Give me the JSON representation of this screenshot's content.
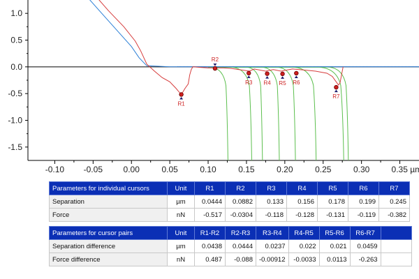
{
  "chart_data": {
    "type": "line",
    "title": "",
    "xlabel": "",
    "ylabel": "",
    "x_unit": "µm",
    "xlim": [
      -0.135,
      0.375
    ],
    "ylim": [
      -1.75,
      1.25
    ],
    "x_ticks": [
      -0.1,
      -0.05,
      0.0,
      0.05,
      0.1,
      0.15,
      0.2,
      0.25,
      0.3,
      0.35
    ],
    "x_tick_labels": [
      "-0.10",
      "-0.05",
      "0.00",
      "0.05",
      "0.10",
      "0.15",
      "0.20",
      "0.25",
      "0.30",
      "0.35 µm"
    ],
    "y_ticks": [
      1.0,
      0.5,
      0.0,
      -0.5,
      -1.0,
      -1.5
    ],
    "y_tick_labels": [
      "1.0",
      "0.5",
      "0.0",
      "-0.5",
      "-1.0",
      "-1.5"
    ],
    "grid": false,
    "colors": {
      "approach": "#2b7fd6",
      "retract": "#d63c3c",
      "steps": "#5cbf4e",
      "baseline": "#1a3faa",
      "zero_line": "#000000",
      "cursor": "#cc1f1f"
    },
    "series": [
      {
        "color": "#2b7fd6",
        "x": [
          -0.056,
          -0.04,
          -0.02,
          0.0,
          0.01,
          0.02,
          0.05,
          0.1,
          0.2,
          0.3,
          0.375
        ],
        "y": [
          1.28,
          1.02,
          0.7,
          0.38,
          0.17,
          0.02,
          0.0,
          0.0,
          0.0,
          0.0,
          0.0
        ]
      },
      {
        "color": "#d63c3c",
        "x": [
          -0.044,
          -0.03,
          -0.01,
          0.005,
          0.012,
          0.02,
          0.03,
          0.04,
          0.05,
          0.058,
          0.065,
          0.07,
          0.074,
          0.076,
          0.078,
          0.08,
          0.09,
          0.1,
          0.11,
          0.12,
          0.13,
          0.154,
          0.16,
          0.175,
          0.185,
          0.195,
          0.21,
          0.225,
          0.24,
          0.255,
          0.262,
          0.266,
          0.27,
          0.272,
          0.276
        ],
        "y": [
          1.28,
          1.05,
          0.75,
          0.48,
          0.3,
          0.05,
          -0.08,
          -0.2,
          -0.28,
          -0.4,
          -0.52,
          -0.4,
          -0.32,
          -0.15,
          -0.05,
          0.0,
          -0.01,
          -0.02,
          -0.02,
          -0.02,
          -0.03,
          -0.08,
          -0.04,
          -0.08,
          -0.05,
          -0.08,
          -0.04,
          -0.06,
          -0.08,
          -0.12,
          -0.18,
          -0.26,
          -0.34,
          -0.3,
          0.0
        ]
      }
    ],
    "steps": [
      {
        "start": 0.104,
        "bottom": 0.126
      },
      {
        "start": 0.131,
        "bottom": 0.157
      },
      {
        "start": 0.151,
        "bottom": 0.171
      },
      {
        "start": 0.171,
        "bottom": 0.193
      },
      {
        "start": 0.191,
        "bottom": 0.214
      },
      {
        "start": 0.212,
        "bottom": 0.241
      },
      {
        "start": 0.245,
        "bottom": 0.277
      },
      {
        "start": 0.258,
        "bottom": 0.283
      }
    ],
    "cursors": [
      {
        "label": "R1",
        "x": 0.065,
        "y": -0.517,
        "pos": "below"
      },
      {
        "label": "R2",
        "x": 0.109,
        "y": -0.0304,
        "pos": "above"
      },
      {
        "label": "R3",
        "x": 0.153,
        "y": -0.118,
        "pos": "below"
      },
      {
        "label": "R4",
        "x": 0.177,
        "y": -0.128,
        "pos": "below"
      },
      {
        "label": "R5",
        "x": 0.197,
        "y": -0.131,
        "pos": "below"
      },
      {
        "label": "R6",
        "x": 0.215,
        "y": -0.119,
        "pos": "below"
      },
      {
        "label": "R7",
        "x": 0.267,
        "y": -0.382,
        "pos": "below"
      }
    ]
  },
  "table_individual": {
    "header": [
      "Parameters for individual cursors",
      "Unit",
      "R1",
      "R2",
      "R3",
      "R4",
      "R5",
      "R6",
      "R7"
    ],
    "rows": [
      {
        "label": "Separation",
        "unit": "µm",
        "values": [
          "0.0444",
          "0.0882",
          "0.133",
          "0.156",
          "0.178",
          "0.199",
          "0.245"
        ]
      },
      {
        "label": "Force",
        "unit": "nN",
        "values": [
          "-0.517",
          "-0.0304",
          "-0.118",
          "-0.128",
          "-0.131",
          "-0.119",
          "-0.382"
        ]
      }
    ]
  },
  "table_pairs": {
    "header": [
      "Parameters for cursor pairs",
      "Unit",
      "R1-R2",
      "R2-R3",
      "R3-R4",
      "R4-R5",
      "R5-R6",
      "R6-R7",
      ""
    ],
    "rows": [
      {
        "label": "Separation difference",
        "unit": "µm",
        "values": [
          "0.0438",
          "0.0444",
          "0.0237",
          "0.022",
          "0.021",
          "0.0459",
          ""
        ]
      },
      {
        "label": "Force difference",
        "unit": "nN",
        "values": [
          "0.487",
          "-0.088",
          "-0.00912",
          "-0.0033",
          "0.0113",
          "-0.263",
          ""
        ]
      }
    ]
  }
}
